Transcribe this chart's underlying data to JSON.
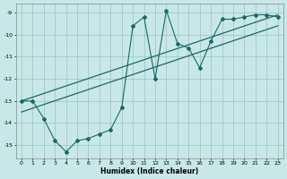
{
  "xlabel": "Humidex (Indice chaleur)",
  "bg_color": "#c8e8e8",
  "grid_color": "#a0c8c8",
  "line_color": "#1a6868",
  "xlim": [
    -0.5,
    23.5
  ],
  "ylim": [
    -15.6,
    -8.6
  ],
  "yticks": [
    -15,
    -14,
    -13,
    -12,
    -11,
    -10,
    -9
  ],
  "xticks": [
    0,
    1,
    2,
    3,
    4,
    5,
    6,
    7,
    8,
    9,
    10,
    11,
    12,
    13,
    14,
    15,
    16,
    17,
    18,
    19,
    20,
    21,
    22,
    23
  ],
  "zigzag_x": [
    0,
    1,
    2,
    3,
    4,
    5,
    6,
    7,
    8,
    9,
    10,
    11,
    12,
    13,
    14,
    15,
    16,
    17,
    18,
    19,
    20,
    21,
    22,
    23
  ],
  "zigzag_y": [
    -13.0,
    -13.0,
    -13.8,
    -14.8,
    -15.3,
    -14.8,
    -14.7,
    -14.5,
    -14.3,
    -13.3,
    -9.6,
    -9.2,
    -12.0,
    -8.9,
    -10.4,
    -10.6,
    -11.5,
    -10.3,
    -9.3,
    -9.3,
    -9.2,
    -9.1,
    -9.1,
    -9.2
  ],
  "trend1_x": [
    0,
    23
  ],
  "trend1_y": [
    -13.0,
    -9.1
  ],
  "trend2_x": [
    0,
    23
  ],
  "trend2_y": [
    -13.5,
    -9.6
  ]
}
